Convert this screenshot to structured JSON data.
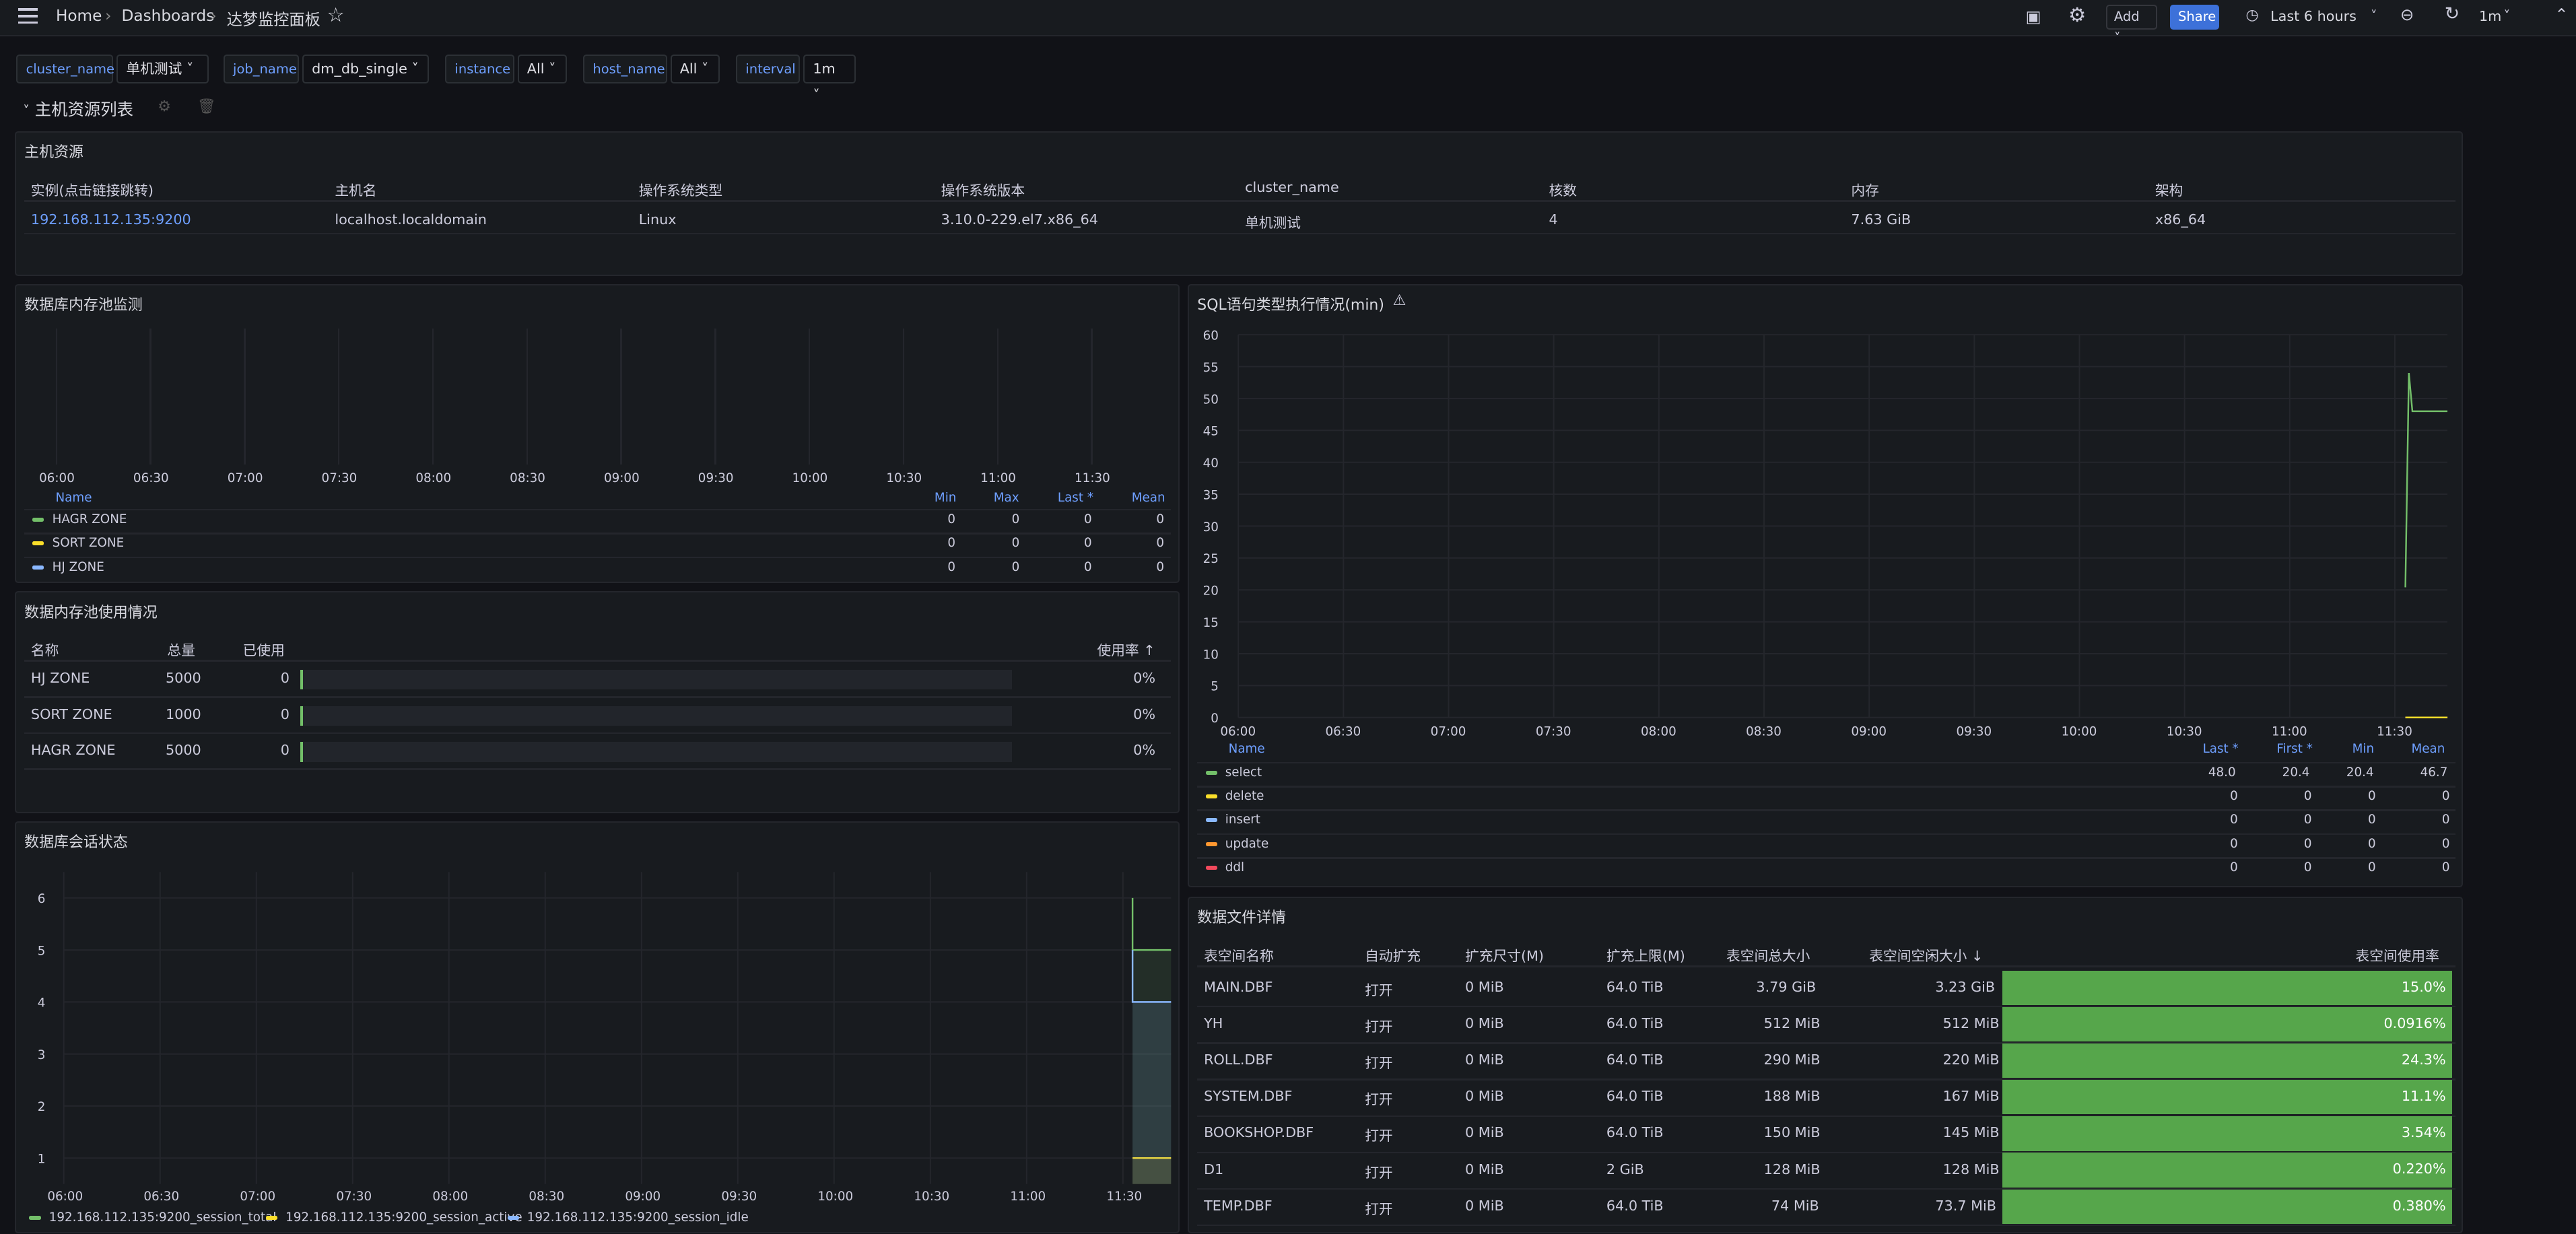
{
  "topbar": {
    "breadcrumb": [
      "Home",
      "Dashboards",
      "达梦监控面板"
    ],
    "add_label": "Add",
    "share_label": "Share",
    "time_range": "Last 6 hours",
    "refresh_interval": "1m"
  },
  "variables": [
    {
      "label": "cluster_name",
      "value": "单机测试"
    },
    {
      "label": "job_name",
      "value": "dm_db_single"
    },
    {
      "label": "instance",
      "value": "All"
    },
    {
      "label": "host_name",
      "value": "All"
    },
    {
      "label": "interval",
      "value": "1m"
    }
  ],
  "row_title": "主机资源列表",
  "host_panel": {
    "title": "主机资源",
    "columns": [
      "实例(点击链接跳转)",
      "主机名",
      "操作系统类型",
      "操作系统版本",
      "cluster_name",
      "核数",
      "内存",
      "架构"
    ],
    "row": [
      "192.168.112.135:9200",
      "localhost.localdomain",
      "Linux",
      "3.10.0-229.el7.x86_64",
      "单机测试",
      "4",
      "7.63 GiB",
      "x86_64"
    ]
  },
  "mem_pool_panel": {
    "title": "数据库内存池监测",
    "x_ticks": [
      "06:00",
      "06:30",
      "07:00",
      "07:30",
      "08:00",
      "08:30",
      "09:00",
      "09:30",
      "10:00",
      "10:30",
      "11:00",
      "11:30"
    ],
    "legend_headers": [
      "Name",
      "Min",
      "Max",
      "Last *",
      "Mean"
    ],
    "legend": [
      {
        "name": "HAGR ZONE",
        "color": "#73bf69",
        "min": "0",
        "max": "0",
        "last": "0",
        "mean": "0"
      },
      {
        "name": "SORT ZONE",
        "color": "#fade2a",
        "min": "0",
        "max": "0",
        "last": "0",
        "mean": "0"
      },
      {
        "name": "HJ ZONE",
        "color": "#8ab8ff",
        "min": "0",
        "max": "0",
        "last": "0",
        "mean": "0"
      }
    ]
  },
  "mem_usage_panel": {
    "title": "数据内存池使用情况",
    "headers": [
      "名称",
      "总量",
      "已使用",
      "使用率 ↑"
    ],
    "rows": [
      {
        "name": "HJ ZONE",
        "total": "5000",
        "used": "0",
        "rate": "0%",
        "rate_value": 0
      },
      {
        "name": "SORT ZONE",
        "total": "1000",
        "used": "0",
        "rate": "0%",
        "rate_value": 0
      },
      {
        "name": "HAGR ZONE",
        "total": "5000",
        "used": "0",
        "rate": "0%",
        "rate_value": 0
      }
    ]
  },
  "session_panel": {
    "title": "数据库会话状态",
    "y_ticks": [
      "6",
      "5",
      "4",
      "3",
      "2",
      "1"
    ],
    "x_ticks": [
      "06:00",
      "06:30",
      "07:00",
      "07:30",
      "08:00",
      "08:30",
      "09:00",
      "09:30",
      "10:00",
      "10:30",
      "11:00",
      "11:30"
    ],
    "legend": [
      {
        "name": "192.168.112.135:9200_session_total",
        "color": "#73bf69"
      },
      {
        "name": "192.168.112.135:9200_session_active",
        "color": "#fade2a"
      },
      {
        "name": "192.168.112.135:9200_session_idle",
        "color": "#8ab8ff"
      }
    ]
  },
  "sql_panel": {
    "title": "SQL语句类型执行情况(min)",
    "warning_icon": "warning-icon",
    "y_ticks": [
      "60",
      "55",
      "50",
      "45",
      "40",
      "35",
      "30",
      "25",
      "20",
      "15",
      "10",
      "5",
      "0"
    ],
    "x_ticks": [
      "06:00",
      "06:30",
      "07:00",
      "07:30",
      "08:00",
      "08:30",
      "09:00",
      "09:30",
      "10:00",
      "10:30",
      "11:00",
      "11:30"
    ],
    "legend_headers": [
      "Name",
      "Last *",
      "First *",
      "Min",
      "Mean"
    ],
    "legend": [
      {
        "name": "select",
        "color": "#73bf69",
        "last": "48.0",
        "first": "20.4",
        "min": "20.4",
        "mean": "46.7"
      },
      {
        "name": "delete",
        "color": "#fade2a",
        "last": "0",
        "first": "0",
        "min": "0",
        "mean": "0"
      },
      {
        "name": "insert",
        "color": "#8ab8ff",
        "last": "0",
        "first": "0",
        "min": "0",
        "mean": "0"
      },
      {
        "name": "update",
        "color": "#ff9830",
        "last": "0",
        "first": "0",
        "min": "0",
        "mean": "0"
      },
      {
        "name": "ddl",
        "color": "#f2495c",
        "last": "0",
        "first": "0",
        "min": "0",
        "mean": "0"
      }
    ]
  },
  "datafile_panel": {
    "title": "数据文件详情",
    "headers": [
      "表空间名称",
      "自动扩充",
      "扩充尺寸(M)",
      "扩充上限(M)",
      "表空间总大小",
      "表空间空闲大小 ↓",
      "表空间使用率"
    ],
    "rows": [
      {
        "name": "MAIN.DBF",
        "auto": "打开",
        "ext": "0 MiB",
        "max": "64.0 TiB",
        "total": "3.79 GiB",
        "free": "3.23 GiB",
        "rate": "15.0%"
      },
      {
        "name": "YH",
        "auto": "打开",
        "ext": "0 MiB",
        "max": "64.0 TiB",
        "total": "512 MiB",
        "free": "512 MiB",
        "rate": "0.0916%"
      },
      {
        "name": "ROLL.DBF",
        "auto": "打开",
        "ext": "0 MiB",
        "max": "64.0 TiB",
        "total": "290 MiB",
        "free": "220 MiB",
        "rate": "24.3%"
      },
      {
        "name": "SYSTEM.DBF",
        "auto": "打开",
        "ext": "0 MiB",
        "max": "64.0 TiB",
        "total": "188 MiB",
        "free": "167 MiB",
        "rate": "11.1%"
      },
      {
        "name": "BOOKSHOP.DBF",
        "auto": "打开",
        "ext": "0 MiB",
        "max": "64.0 TiB",
        "total": "150 MiB",
        "free": "145 MiB",
        "rate": "3.54%"
      },
      {
        "name": "D1",
        "auto": "打开",
        "ext": "0 MiB",
        "max": "2 GiB",
        "total": "128 MiB",
        "free": "128 MiB",
        "rate": "0.220%"
      },
      {
        "name": "TEMP.DBF",
        "auto": "打开",
        "ext": "0 MiB",
        "max": "64.0 TiB",
        "total": "74 MiB",
        "free": "73.7 MiB",
        "rate": "0.380%"
      }
    ]
  },
  "chart_data": [
    {
      "type": "line",
      "title": "SQL语句类型执行情况(min)",
      "ylim": [
        0,
        60
      ],
      "x_range": [
        "06:00",
        "11:45"
      ],
      "series": [
        {
          "name": "select",
          "x": [
            "11:33",
            "11:34",
            "11:35",
            "11:45"
          ],
          "values": [
            20.4,
            54.0,
            48.0,
            48.0
          ]
        },
        {
          "name": "delete",
          "x": [
            "11:33",
            "11:45"
          ],
          "values": [
            0,
            0
          ]
        },
        {
          "name": "insert",
          "x": [
            "11:33",
            "11:45"
          ],
          "values": [
            0,
            0
          ]
        },
        {
          "name": "update",
          "x": [
            "11:33",
            "11:45"
          ],
          "values": [
            0,
            0
          ]
        },
        {
          "name": "ddl",
          "x": [
            "11:33",
            "11:45"
          ],
          "values": [
            0,
            0
          ]
        }
      ]
    },
    {
      "type": "area",
      "title": "数据库会话状态",
      "ylim": [
        0.5,
        6.5
      ],
      "series": [
        {
          "name": "192.168.112.135:9200_session_total",
          "x": [
            "11:33",
            "11:33",
            "11:45"
          ],
          "values": [
            6,
            5,
            5
          ]
        },
        {
          "name": "192.168.112.135:9200_session_active",
          "x": [
            "11:33",
            "11:45"
          ],
          "values": [
            1,
            1
          ]
        },
        {
          "name": "192.168.112.135:9200_session_idle",
          "x": [
            "11:33",
            "11:33",
            "11:45"
          ],
          "values": [
            5,
            4,
            4
          ]
        }
      ]
    }
  ]
}
